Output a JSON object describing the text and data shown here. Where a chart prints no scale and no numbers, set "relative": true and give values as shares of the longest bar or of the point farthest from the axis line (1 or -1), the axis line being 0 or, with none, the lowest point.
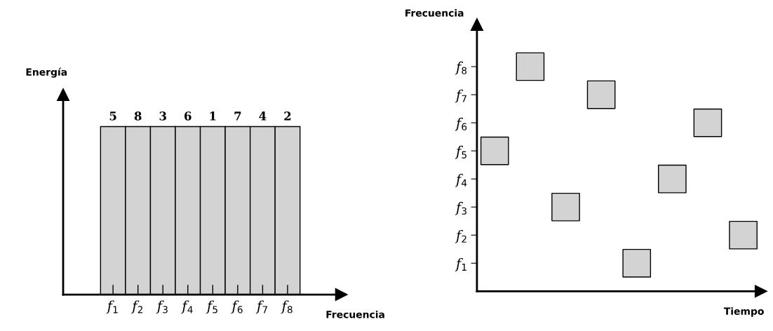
{
  "chart_data": [
    {
      "type": "bar",
      "relative": true,
      "categories": [
        "f$_{1}$",
        "f$_{2}$",
        "f$_{3}$",
        "f$_{4}$",
        "f$_{5}$",
        "f$_{6}$",
        "f$_{7}$",
        "f$_{8}$"
      ],
      "values": [
        1,
        1,
        1,
        1,
        1,
        1,
        1,
        1
      ],
      "annotations": [
        {
          "text": "5",
          "x": "f$_{1}$",
          "y": 1
        },
        {
          "text": "8",
          "x": "f$_{2}$",
          "y": 1
        },
        {
          "text": "3",
          "x": "f$_{3}$",
          "y": 1
        },
        {
          "text": "6",
          "x": "f$_{4}$",
          "y": 1
        },
        {
          "text": "1",
          "x": "f$_{5}$",
          "y": 1
        },
        {
          "text": "7",
          "x": "f$_{6}$",
          "y": 1
        },
        {
          "text": "4",
          "x": "f$_{7}$",
          "y": 1
        },
        {
          "text": "2",
          "x": "f$_{8}$",
          "y": 1
        }
      ],
      "color": "#d3d3d3",
      "ylabel": "Energía",
      "xlabel": "Frecuencia",
      "grid": false
    },
    {
      "type": "scatter",
      "categories": [
        null,
        null,
        null,
        null,
        null,
        null,
        null,
        null
      ],
      "values": [
        5,
        8,
        3,
        7,
        1,
        4,
        6,
        2
      ],
      "color": "#d3d3d3",
      "marker": "square",
      "ylim": [
        0,
        9.5
      ],
      "yticks": [
        {
          "value": 1,
          "label": "f$_{1}$"
        },
        {
          "value": 2,
          "label": "f$_{2}$"
        },
        {
          "value": 3,
          "label": "f$_{3}$"
        },
        {
          "value": 4,
          "label": "f$_{4}$"
        },
        {
          "value": 5,
          "label": "f$_{5}$"
        },
        {
          "value": 6,
          "label": "f$_{6}$"
        },
        {
          "value": 7,
          "label": "f$_{7}$"
        },
        {
          "value": 8,
          "label": "f$_{8}$"
        }
      ],
      "ylabel": "Frecuencia",
      "xlabel": "Tiempo",
      "grid": false
    }
  ]
}
